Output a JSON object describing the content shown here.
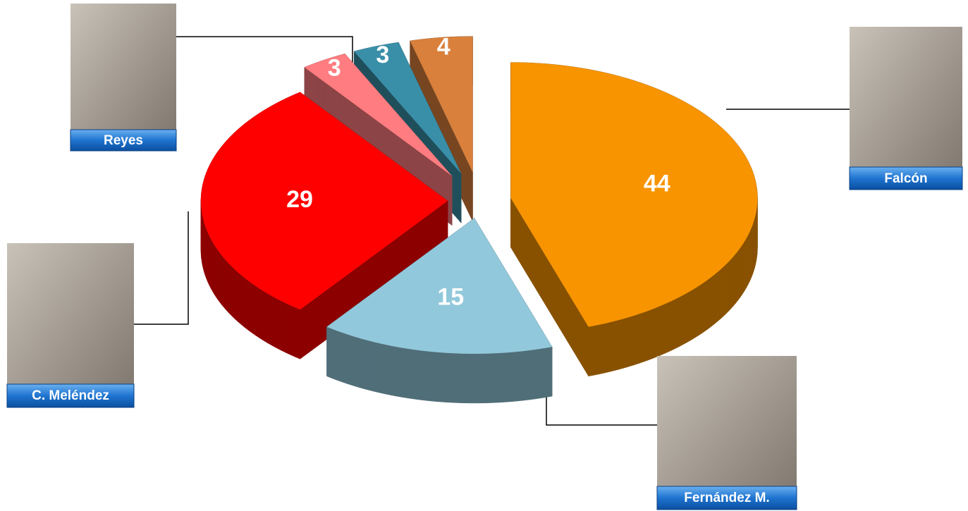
{
  "chart_data": {
    "type": "pie",
    "categories": [
      "Falcón",
      "Fernández M.",
      "C. Meléndez",
      "Reyes",
      null,
      null
    ],
    "values": [
      44,
      15,
      29,
      3,
      3,
      4
    ],
    "colors": [
      "#f79400",
      "#92c8db",
      "#ff0000",
      "#ff7c80",
      "#3a8fa8",
      "#d8803c"
    ]
  }
}
